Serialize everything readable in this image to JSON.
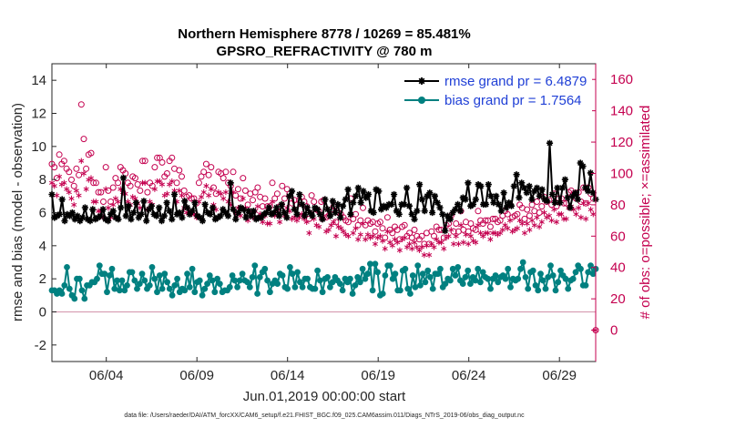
{
  "chart_data": {
    "type": "line",
    "title_line1": "Northern Hemisphere 8778 / 10269 = 85.481%",
    "title_line2": "GPSRO_REFRACTIVITY @ 780 m",
    "xlabel": "Jun.01,2019 00:00:00 start",
    "ylabel_left": "rmse and bias (model - observation)",
    "ylabel_right": "# of obs: o=possible; ×=assimilated",
    "footnote": "data file: /Users/raeder/DAI/ATM_forcXX/CAM6_setup/f.e21.FHIST_BGC.f09_025.CAM6assim.011/Diags_NTrS_2019-06/obs_diag_output.nc",
    "x_ticks": [
      {
        "day": 4,
        "label": "06/04"
      },
      {
        "day": 9,
        "label": "06/09"
      },
      {
        "day": 14,
        "label": "06/14"
      },
      {
        "day": 19,
        "label": "06/19"
      },
      {
        "day": 24,
        "label": "06/24"
      },
      {
        "day": 29,
        "label": "06/29"
      }
    ],
    "xlim": [
      1,
      31
    ],
    "ylim_left": [
      -3,
      15
    ],
    "ylim_right": [
      -20,
      170
    ],
    "yticks_left": [
      -2,
      0,
      2,
      4,
      6,
      8,
      10,
      12,
      14
    ],
    "yticks_right": [
      0,
      20,
      40,
      60,
      80,
      100,
      120,
      140,
      160
    ],
    "series": [
      {
        "name": "rmse grand pr = 6.4879",
        "color": "#000000",
        "marker": "star",
        "values": [
          7.1,
          5.7,
          5.8,
          5.9,
          6.8,
          5.5,
          5.9,
          5.8,
          6.0,
          5.6,
          5.8,
          5.5,
          5.7,
          6.3,
          5.6,
          5.5,
          6.2,
          5.6,
          5.7,
          5.8,
          6.2,
          5.6,
          5.5,
          5.9,
          6.1,
          5.7,
          5.6,
          6.3,
          8.1,
          5.8,
          6.4,
          5.6,
          6.0,
          6.6,
          5.7,
          5.9,
          6.7,
          5.5,
          6.2,
          6.4,
          5.9,
          5.8,
          6.3,
          5.5,
          5.8,
          6.6,
          6.1,
          5.6,
          7.1,
          5.9,
          6.0,
          5.7,
          6.7,
          6.3,
          5.9,
          6.1,
          6.6,
          5.8,
          5.7,
          5.5,
          6.5,
          6.0,
          5.9,
          6.3,
          5.6,
          5.7,
          5.8,
          6.2,
          6.0,
          5.8,
          7.8,
          6.2,
          5.6,
          6.0,
          6.3,
          6.2,
          5.7,
          6.1,
          5.8,
          6.1,
          5.6,
          5.7,
          5.7,
          5.9,
          6.0,
          6.3,
          5.9,
          6.0,
          6.3,
          5.8,
          6.5,
          6.0,
          5.7,
          7.0,
          7.3,
          6.2,
          5.9,
          7.1,
          6.5,
          5.8,
          6.3,
          6.0,
          5.8,
          6.3,
          6.2,
          5.9,
          5.6,
          6.8,
          6.2,
          5.8,
          6.7,
          6.0,
          6.5,
          5.7,
          6.4,
          6.8,
          7.4,
          5.9,
          6.6,
          7.0,
          7.5,
          6.6,
          7.3,
          6.9,
          7.1,
          6.1,
          6.0,
          7.4,
          7.3,
          6.2,
          6.4,
          6.3,
          6.5,
          6.5,
          7.1,
          6.1,
          5.9,
          6.5,
          6.5,
          7.5,
          6.4,
          5.9,
          5.6,
          6.1,
          7.7,
          6.8,
          6.1,
          7.0,
          7.2,
          6.0,
          7.0,
          6.6,
          6.3,
          5.9,
          4.9,
          5.8,
          5.6,
          6.0,
          6.2,
          6.5,
          6.1,
          6.9,
          6.8,
          7.8,
          6.4,
          6.5,
          6.8,
          7.7,
          7.6,
          6.5,
          6.5,
          7.7,
          7.0,
          6.6,
          7.0,
          6.5,
          6.1,
          7.2,
          6.3,
          6.6,
          6.4,
          7.6,
          8.3,
          6.9,
          7.8,
          7.5,
          7.2,
          7.6,
          6.8,
          7.3,
          7.5,
          7.0,
          7.4,
          6.8,
          6.7,
          10.2,
          7.1,
          6.6,
          7.5,
          6.6,
          7.5,
          8.0,
          6.9,
          6.3,
          7.0,
          7.2,
          6.8,
          9.0,
          8.8,
          7.5,
          7.3,
          8.4,
          7.2,
          6.8
        ]
      },
      {
        "name": "bias grand pr = 1.7564",
        "color": "#008080",
        "marker": "circle",
        "values": [
          1.3,
          1.3,
          1.1,
          1.3,
          1.1,
          1.6,
          2.7,
          1.4,
          1.0,
          0.8,
          2.0,
          2.0,
          1.3,
          0.8,
          1.6,
          1.6,
          1.8,
          1.8,
          2.0,
          2.8,
          2.3,
          2.3,
          1.2,
          2.2,
          2.6,
          1.4,
          1.9,
          1.3,
          1.9,
          1.3,
          1.6,
          2.4,
          2.4,
          1.9,
          1.4,
          1.7,
          2.3,
          1.9,
          1.4,
          1.6,
          2.7,
          2.0,
          1.2,
          2.2,
          1.4,
          2.3,
          1.8,
          1.4,
          1.0,
          1.6,
          2.0,
          1.2,
          1.4,
          1.3,
          2.3,
          1.5,
          2.6,
          1.2,
          1.8,
          1.9,
          1.0,
          1.4,
          1.7,
          2.2,
          1.9,
          1.2,
          2.0,
          1.7,
          1.2,
          1.3,
          1.3,
          1.5,
          2.2,
          1.9,
          1.5,
          1.9,
          2.3,
          1.9,
          1.8,
          1.5,
          2.1,
          2.8,
          1.1,
          2.1,
          2.4,
          2.6,
          1.9,
          1.2,
          1.7,
          1.9,
          1.7,
          2.3,
          2.2,
          1.5,
          1.4,
          2.7,
          2.3,
          1.5,
          2.4,
          1.8,
          1.5,
          2.0,
          2.0,
          1.5,
          1.4,
          1.4,
          2.5,
          1.9,
          1.2,
          2.0,
          2.1,
          1.5,
          1.8,
          2.1,
          1.9,
          1.7,
          1.3,
          2.0,
          1.8,
          2.0,
          1.1,
          1.6,
          2.1,
          1.8,
          2.6,
          2.0,
          2.3,
          2.9,
          1.3,
          2.9,
          2.4,
          1.0,
          1.1,
          2.2,
          2.8,
          2.8,
          2.0,
          2.3,
          1.3,
          1.3,
          2.5,
          2.6,
          1.4,
          1.1,
          2.2,
          1.5,
          2.8,
          1.6,
          2.3,
          1.8,
          2.5,
          2.1,
          1.4,
          2.3,
          2.3,
          2.6,
          1.5,
          1.7,
          2.0,
          1.9,
          2.6,
          2.2,
          2.7,
          1.9,
          1.7,
          2.1,
          2.5,
          1.7,
          2.1,
          1.9,
          2.6,
          1.8,
          2.4,
          2.1,
          2.0,
          1.4,
          2.0,
          2.2,
          1.8,
          2.1,
          2.2,
          2.0,
          2.6,
          1.5,
          2.0,
          1.9,
          2.0,
          2.6,
          3.0,
          2.1,
          1.4,
          2.4,
          2.5,
          1.6,
          1.3,
          2.3,
          1.9,
          1.4,
          2.1,
          2.8,
          2.2,
          1.3,
          1.8,
          2.5,
          2.2,
          2.0,
          1.4,
          1.9,
          2.0,
          2.4,
          2.8,
          2.6,
          1.6,
          1.6,
          2.4,
          2.8,
          2.3,
          2.6
        ]
      },
      {
        "name": "possible observations",
        "color": "#c4004f",
        "marker": "open-circle",
        "axis": "right",
        "values": [
          106,
          104,
          97,
          112,
          106,
          108,
          103,
          101,
          96,
          92,
          103,
          99,
          144,
          122,
          103,
          112,
          113,
          94,
          94,
          88,
          88,
          82,
          104,
          89,
          82,
          91,
          97,
          94,
          104,
          102,
          100,
          94,
          92,
          98,
          97,
          93,
          89,
          108,
          108,
          88,
          94,
          92,
          104,
          110,
          110,
          107,
          98,
          100,
          108,
          110,
          103,
          94,
          102,
          98,
          89,
          85,
          86,
          84,
          84,
          81,
          94,
          98,
          101,
          106,
          99,
          104,
          91,
          87,
          101,
          100,
          97,
          101,
          94,
          92,
          101,
          86,
          90,
          84,
          97,
          89,
          80,
          87,
          83,
          88,
          91,
          85,
          79,
          84,
          79,
          79,
          94,
          84,
          87,
          79,
          92,
          84,
          90,
          87,
          81,
          83,
          80,
          83,
          85,
          82,
          79,
          71,
          86,
          82,
          77,
          76,
          82,
          83,
          72,
          73,
          77,
          79,
          69,
          75,
          74,
          72,
          70,
          69,
          84,
          71,
          74,
          67,
          70,
          78,
          67,
          70,
          68,
          69,
          63,
          68,
          69,
          65,
          59,
          72,
          64,
          62,
          66,
          64,
          58,
          66,
          67,
          60,
          62,
          59,
          64,
          60,
          58,
          60,
          55,
          62,
          55,
          63,
          60,
          66,
          64,
          64,
          59,
          67,
          68,
          73,
          63,
          68,
          63,
          76,
          64,
          69,
          63,
          68,
          65,
          64,
          76,
          70,
          68,
          70,
          70,
          66,
          71,
          71,
          69,
          70,
          73,
          76,
          74,
          80,
          72,
          73,
          74,
          80,
          78,
          71,
          77,
          73,
          80,
          76,
          82,
          75,
          79,
          85,
          82,
          83,
          80,
          87,
          79,
          84,
          84,
          81,
          81,
          88,
          89,
          87,
          84,
          88,
          82,
          91,
          81,
          91,
          87,
          84,
          0
        ]
      },
      {
        "name": "assimilated observations",
        "color": "#c4004f",
        "marker": "asterisk",
        "axis": "right",
        "values": [
          94,
          92,
          86,
          98,
          93,
          94,
          90,
          88,
          84,
          80,
          89,
          86,
          108,
          100,
          90,
          96,
          97,
          82,
          82,
          76,
          76,
          72,
          90,
          78,
          72,
          80,
          84,
          82,
          90,
          88,
          87,
          82,
          80,
          85,
          84,
          81,
          78,
          94,
          94,
          77,
          82,
          80,
          90,
          95,
          95,
          93,
          86,
          87,
          93,
          95,
          89,
          82,
          89,
          86,
          78,
          75,
          76,
          74,
          74,
          72,
          82,
          85,
          88,
          92,
          86,
          90,
          80,
          77,
          88,
          87,
          84,
          88,
          82,
          80,
          88,
          75,
          78,
          73,
          84,
          78,
          70,
          76,
          72,
          76,
          79,
          74,
          69,
          73,
          68,
          68,
          82,
          73,
          76,
          69,
          80,
          73,
          78,
          76,
          71,
          72,
          70,
          72,
          74,
          71,
          69,
          62,
          75,
          71,
          67,
          66,
          71,
          72,
          63,
          64,
          67,
          69,
          60,
          66,
          65,
          63,
          61,
          60,
          73,
          62,
          65,
          58,
          61,
          68,
          58,
          61,
          59,
          60,
          55,
          59,
          60,
          57,
          52,
          63,
          56,
          54,
          58,
          56,
          51,
          58,
          59,
          53,
          55,
          52,
          56,
          53,
          51,
          53,
          48,
          54,
          48,
          55,
          53,
          58,
          56,
          56,
          52,
          59,
          60,
          64,
          55,
          60,
          55,
          67,
          56,
          61,
          55,
          60,
          57,
          56,
          67,
          62,
          60,
          62,
          62,
          58,
          62,
          62,
          61,
          62,
          64,
          67,
          65,
          70,
          63,
          64,
          65,
          70,
          68,
          62,
          68,
          64,
          70,
          67,
          72,
          66,
          69,
          75,
          72,
          73,
          70,
          77,
          69,
          74,
          74,
          71,
          71,
          78,
          79,
          77,
          74,
          78,
          72,
          81,
          71,
          81,
          77,
          74,
          0
        ]
      }
    ],
    "zero_line": 0,
    "legend_position": "top-right"
  }
}
